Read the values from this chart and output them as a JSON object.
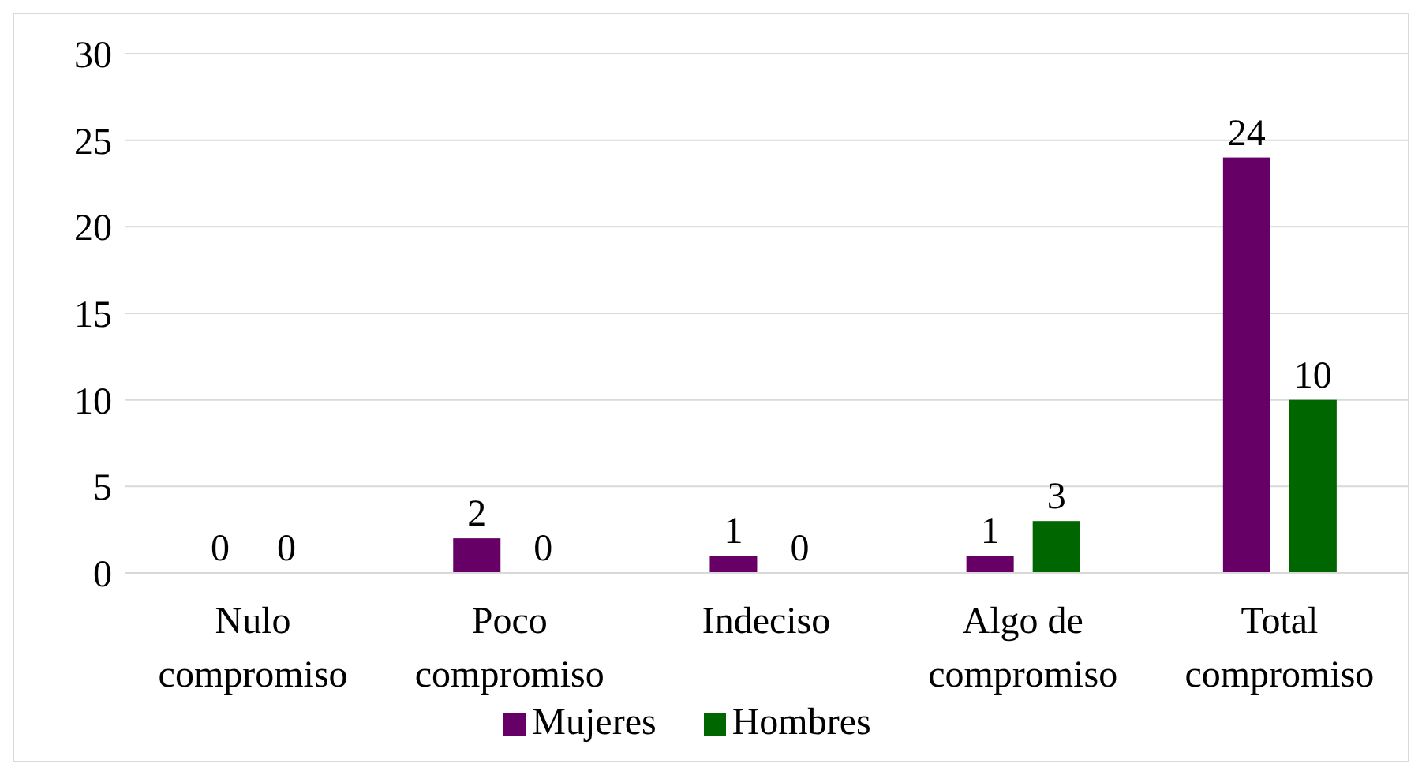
{
  "chart_data": {
    "type": "bar",
    "categories": [
      "Nulo compromiso",
      "Poco compromiso",
      "Indeciso",
      "Algo de compromiso",
      "Total compromiso"
    ],
    "series": [
      {
        "name": "Mujeres",
        "color": "#660066",
        "values": [
          0,
          2,
          1,
          1,
          24
        ]
      },
      {
        "name": "Hombres",
        "color": "#006600",
        "values": [
          0,
          0,
          0,
          3,
          10
        ]
      }
    ],
    "ylim": [
      0,
      30
    ],
    "yticks": [
      0,
      5,
      10,
      15,
      20,
      25,
      30
    ],
    "grid": "y",
    "legend": "bottom",
    "data_labels": true
  }
}
